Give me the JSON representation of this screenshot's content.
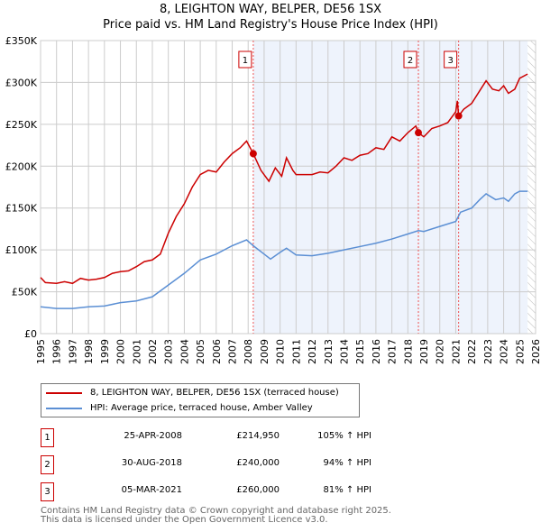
{
  "chart_data": {
    "type": "line",
    "title": "8, LEIGHTON WAY, BELPER, DE56 1SX",
    "subtitle": "Price paid vs. HM Land Registry's House Price Index (HPI)",
    "xlim": [
      1995,
      2026
    ],
    "ylim": [
      0,
      350000
    ],
    "x_ticks": [
      "1995",
      "1996",
      "1997",
      "1998",
      "1999",
      "2000",
      "2001",
      "2002",
      "2003",
      "2004",
      "2005",
      "2006",
      "2007",
      "2008",
      "2009",
      "2010",
      "2011",
      "2012",
      "2013",
      "2014",
      "2015",
      "2016",
      "2017",
      "2018",
      "2019",
      "2020",
      "2021",
      "2022",
      "2023",
      "2024",
      "2025",
      "2026"
    ],
    "y_ticks": [
      {
        "v": 0,
        "label": "£0"
      },
      {
        "v": 50000,
        "label": "£50K"
      },
      {
        "v": 100000,
        "label": "£100K"
      },
      {
        "v": 150000,
        "label": "£150K"
      },
      {
        "v": 200000,
        "label": "£200K"
      },
      {
        "v": 250000,
        "label": "£250K"
      },
      {
        "v": 300000,
        "label": "£300K"
      },
      {
        "v": 350000,
        "label": "£350K"
      }
    ],
    "grid": true,
    "shaded_from": 2008.32,
    "hatched_from": 2025.5,
    "series": [
      {
        "name": "8, LEIGHTON WAY, BELPER, DE56 1SX (terraced house)",
        "color": "#cc0000",
        "x": [
          1995,
          1995.3,
          1996,
          1996.5,
          1997,
          1997.5,
          1998,
          1998.5,
          1999,
          1999.5,
          2000,
          2000.5,
          2001,
          2001.5,
          2002,
          2002.5,
          2003,
          2003.5,
          2004,
          2004.5,
          2005,
          2005.5,
          2006,
          2006.5,
          2007,
          2007.5,
          2007.9,
          2008.32,
          2008.8,
          2009.3,
          2009.7,
          2010.1,
          2010.4,
          2010.8,
          2011,
          2012,
          2012.5,
          2013,
          2013.5,
          2014,
          2014.5,
          2015,
          2015.5,
          2016,
          2016.5,
          2017,
          2017.5,
          2018,
          2018.5,
          2018.66,
          2019,
          2019.5,
          2020,
          2020.5,
          2021,
          2021.1,
          2021.18,
          2021.5,
          2022,
          2022.5,
          2022.9,
          2023.3,
          2023.7,
          2024,
          2024.3,
          2024.7,
          2025,
          2025.5
        ],
        "y": [
          67000,
          61000,
          60000,
          62000,
          60000,
          66000,
          64000,
          65000,
          67000,
          72000,
          74000,
          75000,
          80000,
          86000,
          88000,
          95000,
          120000,
          140000,
          155000,
          175000,
          190000,
          195000,
          193000,
          205000,
          215000,
          222000,
          230000,
          214950,
          195000,
          182000,
          198000,
          188000,
          210000,
          195000,
          190000,
          190000,
          193000,
          192000,
          200000,
          210000,
          207000,
          213000,
          215000,
          222000,
          220000,
          235000,
          230000,
          240000,
          248000,
          240000,
          235000,
          245000,
          248000,
          252000,
          265000,
          278000,
          260000,
          268000,
          275000,
          290000,
          302000,
          292000,
          290000,
          296000,
          287000,
          292000,
          305000,
          310000
        ]
      },
      {
        "name": "HPI: Average price, terraced house, Amber Valley",
        "color": "#5b8fd4",
        "x": [
          1995,
          1996,
          1997,
          1998,
          1999,
          2000,
          2001,
          2002,
          2003,
          2004,
          2005,
          2006,
          2007,
          2007.9,
          2008.32,
          2009,
          2009.4,
          2010,
          2010.4,
          2011,
          2012,
          2013,
          2014,
          2015,
          2016,
          2017,
          2018,
          2018.66,
          2019,
          2020,
          2021,
          2021.3,
          2022,
          2022.5,
          2022.9,
          2023.5,
          2024,
          2024.3,
          2024.7,
          2025,
          2025.5
        ],
        "y": [
          32000,
          30000,
          30000,
          32000,
          33000,
          37000,
          39000,
          44000,
          58000,
          72000,
          88000,
          95000,
          105000,
          112000,
          105000,
          95000,
          89000,
          97000,
          102000,
          94000,
          93000,
          96000,
          100000,
          104000,
          108000,
          113000,
          119000,
          123000,
          122000,
          128000,
          134000,
          145000,
          150000,
          160000,
          167000,
          160000,
          162000,
          158000,
          167000,
          170000,
          170000
        ]
      }
    ],
    "sales": [
      {
        "n": "1",
        "x": 2008.32,
        "y": 214950,
        "date": "25-APR-2008",
        "price": "£214,950",
        "hpi": "105% ↑ HPI"
      },
      {
        "n": "2",
        "x": 2018.66,
        "y": 240000,
        "date": "30-AUG-2018",
        "price": "£240,000",
        "hpi": "94% ↑ HPI"
      },
      {
        "n": "3",
        "x": 2021.18,
        "y": 260000,
        "date": "05-MAR-2021",
        "price": "£260,000",
        "hpi": "81% ↑ HPI"
      }
    ]
  },
  "footer": [
    "Contains HM Land Registry data © Crown copyright and database right 2025.",
    "This data is licensed under the Open Government Licence v3.0."
  ]
}
